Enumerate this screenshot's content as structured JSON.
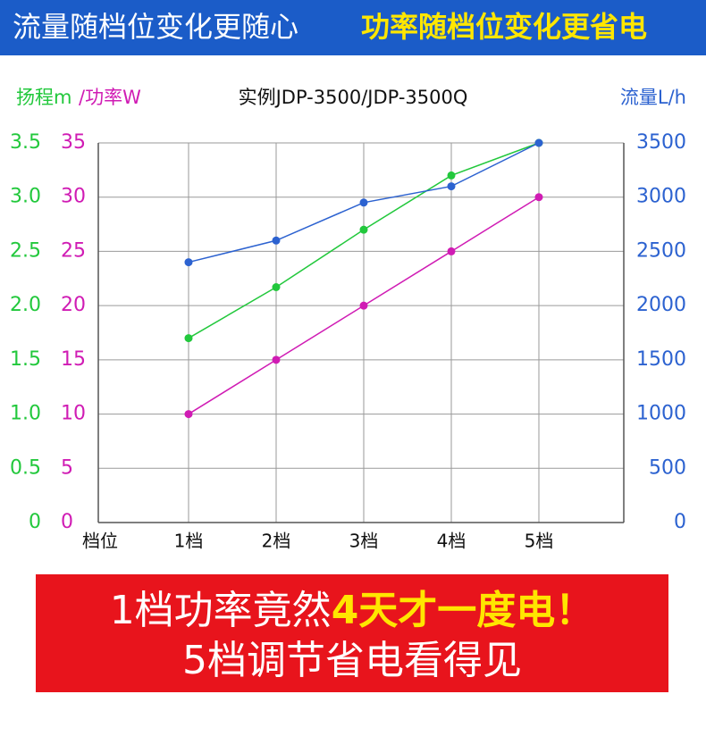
{
  "header": {
    "left": "流量随档位变化更随心",
    "right": "功率随档位变化更省电"
  },
  "chart_data": {
    "type": "line",
    "subtitle": "实例JDP-3500/JDP-3500Q",
    "y_label": "扬程m",
    "y2_label": "/功率W",
    "y3_label": "流量L/h",
    "x_label": "档位",
    "categories": [
      "1档",
      "2档",
      "3档",
      "4档",
      "5档"
    ],
    "ylim": [
      0,
      3.5
    ],
    "yticks": [
      0,
      0.5,
      {
        "value": 1,
        "label": "1.0"
      },
      1.5,
      {
        "value": 2,
        "label": "2.0"
      },
      2.5,
      {
        "value": 3,
        "label": "3.0"
      },
      3.5
    ],
    "y2lim": [
      0,
      35
    ],
    "y2ticks": [
      0,
      5,
      10,
      15,
      20,
      25,
      30,
      35
    ],
    "y3lim": [
      0,
      3500
    ],
    "y3ticks": [
      0,
      500,
      1000,
      1500,
      2000,
      2500,
      3000,
      3500
    ],
    "grid": true,
    "series": [
      {
        "name": "扬程",
        "color": "#22c83c",
        "axis": "y",
        "values": [
          1.7,
          2.17,
          2.7,
          3.2,
          3.5
        ]
      },
      {
        "name": "功率",
        "color": "#d01cb4",
        "axis": "y2",
        "values": [
          10,
          15,
          20,
          25,
          30
        ]
      },
      {
        "name": "流量",
        "color": "#2c62d0",
        "axis": "y3",
        "values": [
          2400,
          2600,
          2950,
          3100,
          3500
        ]
      }
    ]
  },
  "banner": {
    "line1_a": "1档功率竟然",
    "line1_b": "4天才一度电！",
    "line2": "5档调节省电看得见"
  }
}
